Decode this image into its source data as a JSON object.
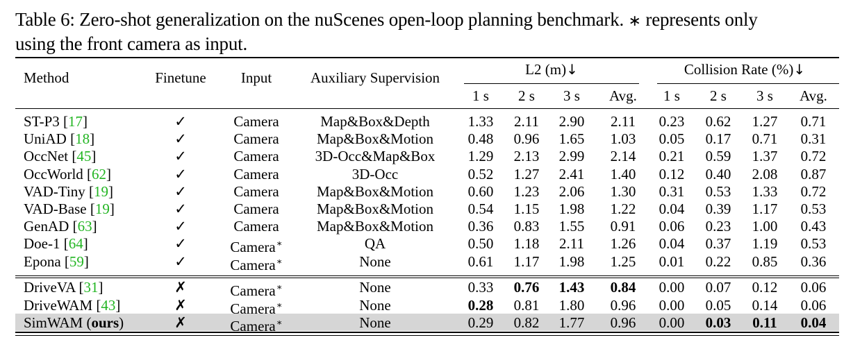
{
  "caption": {
    "label": "Table 6:",
    "text": "Zero-shot generalization on the nuScenes open-loop planning benchmark.",
    "star": "∗",
    "tail_line1": "represents only",
    "tail_line2": "using the front camera as input."
  },
  "headers": {
    "method": "Method",
    "finetune": "Finetune",
    "input": "Input",
    "aux": "Auxiliary Supervision",
    "l2": "L2 (m)",
    "collision": "Collision Rate (%)",
    "arrow": "↓",
    "sub": [
      "1 s",
      "2 s",
      "3 s",
      "Avg.",
      "1 s",
      "2 s",
      "3 s",
      "Avg."
    ]
  },
  "group1": [
    {
      "name": "ST-P3",
      "cite": "17",
      "finetune": "✓",
      "input": "Camera",
      "star": false,
      "aux": "Map&Box&Depth",
      "l2": [
        "1.33",
        "2.11",
        "2.90",
        "2.11"
      ],
      "col": [
        "0.23",
        "0.62",
        "1.27",
        "0.71"
      ]
    },
    {
      "name": "UniAD",
      "cite": "18",
      "finetune": "✓",
      "input": "Camera",
      "star": false,
      "aux": "Map&Box&Motion",
      "l2": [
        "0.48",
        "0.96",
        "1.65",
        "1.03"
      ],
      "col": [
        "0.05",
        "0.17",
        "0.71",
        "0.31"
      ]
    },
    {
      "name": "OccNet",
      "cite": "45",
      "finetune": "✓",
      "input": "Camera",
      "star": false,
      "aux": "3D-Occ&Map&Box",
      "l2": [
        "1.29",
        "2.13",
        "2.99",
        "2.14"
      ],
      "col": [
        "0.21",
        "0.59",
        "1.37",
        "0.72"
      ]
    },
    {
      "name": "OccWorld",
      "cite": "62",
      "finetune": "✓",
      "input": "Camera",
      "star": false,
      "aux": "3D-Occ",
      "l2": [
        "0.52",
        "1.27",
        "2.41",
        "1.40"
      ],
      "col": [
        "0.12",
        "0.40",
        "2.08",
        "0.87"
      ]
    },
    {
      "name": "VAD-Tiny",
      "cite": "19",
      "finetune": "✓",
      "input": "Camera",
      "star": false,
      "aux": "Map&Box&Motion",
      "l2": [
        "0.60",
        "1.23",
        "2.06",
        "1.30"
      ],
      "col": [
        "0.31",
        "0.53",
        "1.33",
        "0.72"
      ]
    },
    {
      "name": "VAD-Base",
      "cite": "19",
      "finetune": "✓",
      "input": "Camera",
      "star": false,
      "aux": "Map&Box&Motion",
      "l2": [
        "0.54",
        "1.15",
        "1.98",
        "1.22"
      ],
      "col": [
        "0.04",
        "0.39",
        "1.17",
        "0.53"
      ]
    },
    {
      "name": "GenAD",
      "cite": "63",
      "finetune": "✓",
      "input": "Camera",
      "star": false,
      "aux": "Map&Box&Motion",
      "l2": [
        "0.36",
        "0.83",
        "1.55",
        "0.91"
      ],
      "col": [
        "0.06",
        "0.23",
        "1.00",
        "0.43"
      ]
    },
    {
      "name": "Doe-1",
      "cite": "64",
      "finetune": "✓",
      "input": "Camera",
      "star": true,
      "aux": "QA",
      "l2": [
        "0.50",
        "1.18",
        "2.11",
        "1.26"
      ],
      "col": [
        "0.04",
        "0.37",
        "1.19",
        "0.53"
      ]
    },
    {
      "name": "Epona",
      "cite": "59",
      "finetune": "✓",
      "input": "Camera",
      "star": true,
      "aux": "None",
      "l2": [
        "0.61",
        "1.17",
        "1.98",
        "1.25"
      ],
      "col": [
        "0.01",
        "0.22",
        "0.85",
        "0.36"
      ]
    }
  ],
  "group2": [
    {
      "name": "DriveVA",
      "cite": "31",
      "finetune": "✗",
      "input": "Camera",
      "star": true,
      "aux": "None",
      "l2": [
        "0.33",
        "0.76",
        "1.43",
        "0.84"
      ],
      "col": [
        "0.00",
        "0.07",
        "0.12",
        "0.06"
      ],
      "bold_l2": [
        false,
        true,
        true,
        true
      ],
      "bold_col": [
        false,
        false,
        false,
        false
      ]
    },
    {
      "name": "DriveWAM",
      "cite": "43",
      "finetune": "✗",
      "input": "Camera",
      "star": true,
      "aux": "None",
      "l2": [
        "0.28",
        "0.81",
        "1.80",
        "0.96"
      ],
      "col": [
        "0.00",
        "0.05",
        "0.14",
        "0.06"
      ],
      "bold_l2": [
        true,
        false,
        false,
        false
      ],
      "bold_col": [
        false,
        false,
        false,
        false
      ]
    },
    {
      "name": "SimWAM",
      "ours": "ours",
      "finetune": "✗",
      "input": "Camera",
      "star": true,
      "aux": "None",
      "l2": [
        "0.29",
        "0.82",
        "1.77",
        "0.96"
      ],
      "col": [
        "0.00",
        "0.03",
        "0.11",
        "0.04"
      ],
      "bold_l2": [
        false,
        false,
        false,
        false
      ],
      "bold_col": [
        false,
        true,
        true,
        true
      ],
      "highlight": true
    }
  ]
}
